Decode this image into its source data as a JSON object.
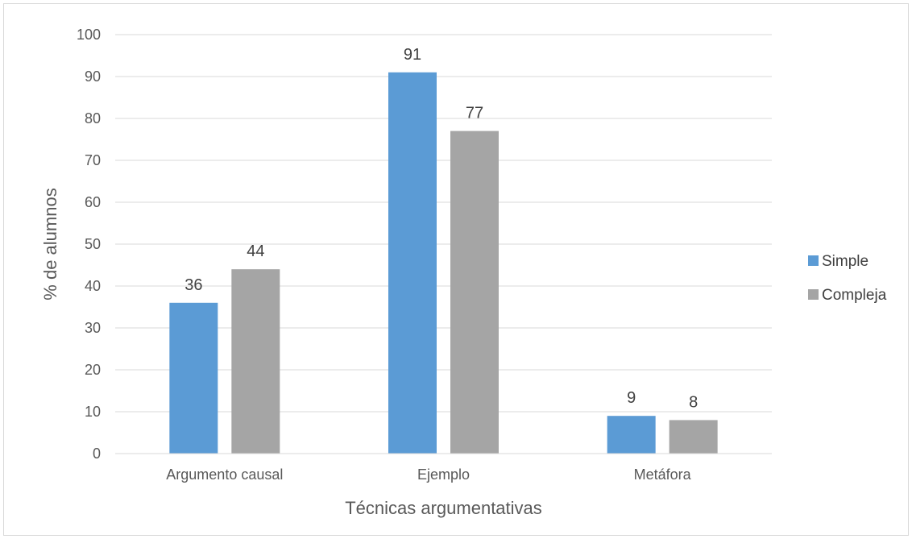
{
  "chart_data": {
    "type": "bar",
    "title": "",
    "xlabel": "Técnicas argumentativas",
    "ylabel": "% de alumnos",
    "categories": [
      "Argumento causal",
      "Ejemplo",
      "Metáfora"
    ],
    "series": [
      {
        "name": "Simple",
        "values": [
          36,
          91,
          9
        ],
        "color": "#5b9bd5"
      },
      {
        "name": "Compleja",
        "values": [
          44,
          77,
          8
        ],
        "color": "#a5a5a5"
      }
    ],
    "ylim": [
      0,
      100
    ],
    "yticks": [
      "0",
      "10",
      "20",
      "30",
      "40",
      "50",
      "60",
      "70",
      "80",
      "90",
      "100"
    ],
    "grid": true,
    "legend_position": "right",
    "data_labels": true
  }
}
